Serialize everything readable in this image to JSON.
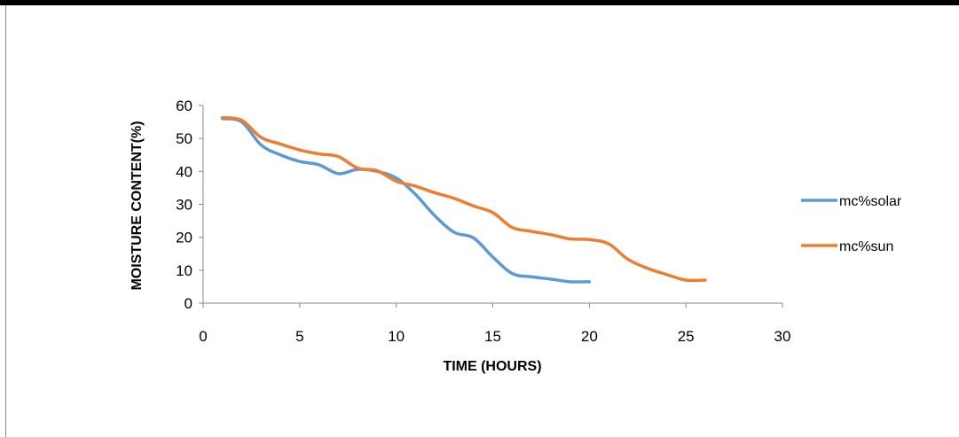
{
  "chart_data": {
    "type": "line",
    "title": "",
    "xlabel": "TIME (HOURS)",
    "ylabel": "MOISTURE CONTENT(%)",
    "xlim": [
      0,
      30
    ],
    "ylim": [
      0,
      60
    ],
    "xticks": [
      0,
      5,
      10,
      15,
      20,
      25,
      30
    ],
    "yticks": [
      0,
      10,
      20,
      30,
      40,
      50,
      60
    ],
    "grid": false,
    "legend": "right",
    "series": [
      {
        "name": "mc%solar",
        "color": "#5B9BD5",
        "x": [
          1,
          2,
          3,
          4,
          5,
          6,
          7,
          8,
          9,
          10,
          11,
          12,
          13,
          14,
          15,
          16,
          17,
          18,
          19,
          20
        ],
        "y": [
          56,
          55,
          48,
          45,
          43,
          42,
          39.3,
          40.6,
          40,
          38,
          33,
          26.5,
          21.5,
          19.8,
          14,
          9,
          8,
          7.3,
          6.5,
          6.5
        ]
      },
      {
        "name": "mc%sun",
        "color": "#ED7D31",
        "x": [
          1,
          2,
          3,
          4,
          5,
          6,
          7,
          8,
          9,
          10,
          11,
          12,
          13,
          14,
          15,
          16,
          17,
          18,
          19,
          20,
          21,
          22,
          23,
          24,
          25,
          26
        ],
        "y": [
          56.3,
          55.5,
          50.3,
          48.3,
          46.5,
          45.3,
          44.5,
          41,
          40.2,
          37,
          35.5,
          33.5,
          31.8,
          29.5,
          27.5,
          23,
          21.8,
          20.8,
          19.5,
          19.3,
          18,
          13.3,
          10.6,
          8.7,
          7,
          7
        ]
      }
    ]
  }
}
